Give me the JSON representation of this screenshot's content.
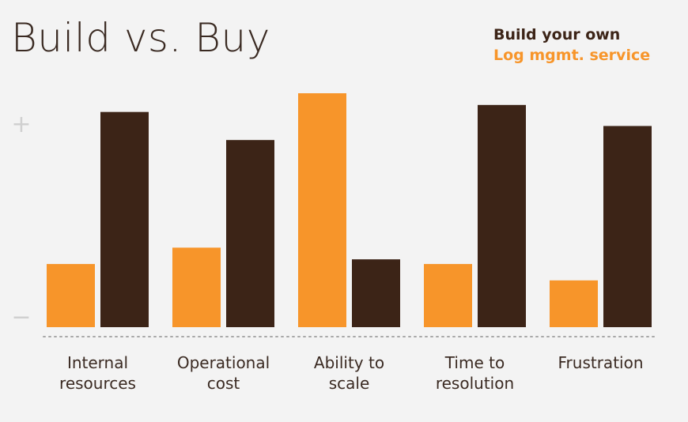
{
  "colors": {
    "build": "#3c2417",
    "buy": "#f7952a",
    "background": "#f3f3f3",
    "text": "#3a2a22",
    "axis": "#d0d0d0"
  },
  "chart_data": {
    "type": "bar",
    "title": "Build vs. Buy",
    "xlabel": "",
    "ylabel": "",
    "y_axis_top_marker": "+",
    "y_axis_bottom_marker": "−",
    "ylim": [
      0,
      100
    ],
    "legend_position": "top-right",
    "categories": [
      [
        "Internal",
        "resources"
      ],
      [
        "Operational",
        "cost"
      ],
      [
        "Ability to",
        "scale"
      ],
      [
        "Time to",
        "resolution"
      ],
      [
        "Frustration"
      ]
    ],
    "series": [
      {
        "name": "Log mgmt. service",
        "color": "#f7952a",
        "values": [
          27,
          34,
          100,
          27,
          20
        ]
      },
      {
        "name": "Build your own",
        "color": "#3c2417",
        "values": [
          92,
          80,
          29,
          95,
          86
        ]
      }
    ]
  }
}
